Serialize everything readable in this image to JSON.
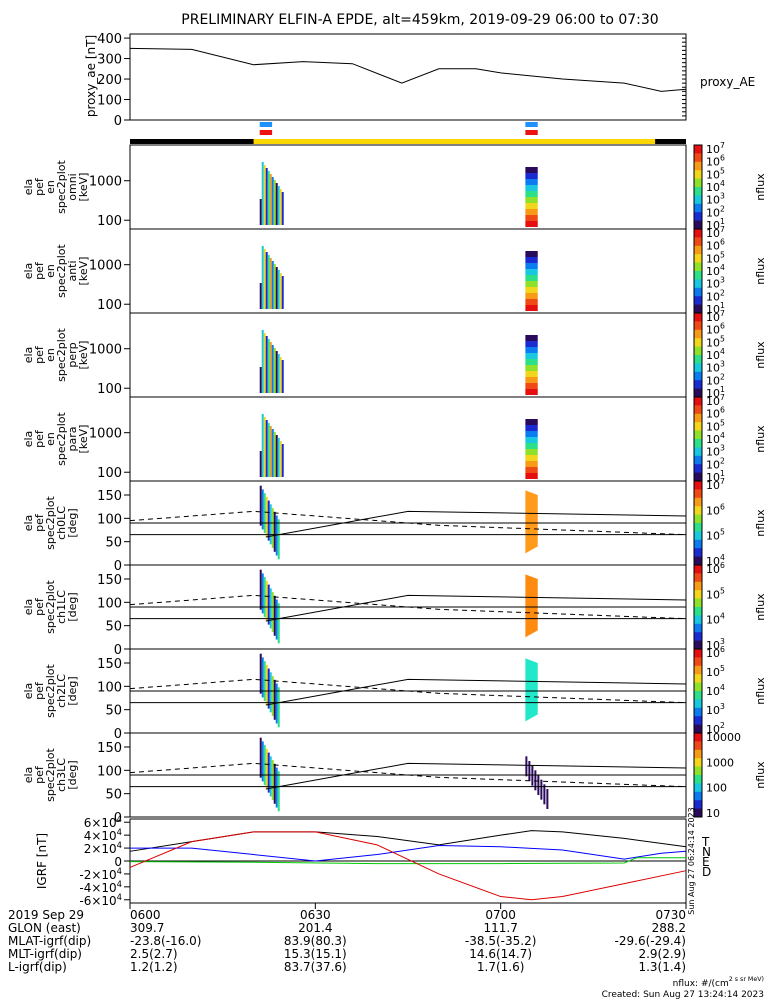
{
  "title": "PRELIMINARY ELFIN-A EPDE, alt=459km, 2019-09-29 06:00 to 07:30",
  "chart_data": [
    {
      "type": "line",
      "panel": "proxy_ae",
      "ylabel": "proxy_ae [nT]",
      "legend": "proxy_AE",
      "ylim": [
        0,
        420
      ],
      "yticks": [
        0,
        100,
        200,
        300,
        400
      ],
      "x_minutes": [
        0,
        10,
        20,
        28,
        36,
        44,
        50,
        56,
        60,
        70,
        80,
        86,
        90
      ],
      "values": [
        350,
        345,
        270,
        285,
        275,
        180,
        250,
        250,
        230,
        200,
        180,
        140,
        150
      ]
    },
    {
      "type": "heatmap",
      "panels": [
        {
          "label": [
            "ela",
            "pef",
            "en",
            "spec2plot",
            "omni",
            "[keV]"
          ],
          "kind": "energy",
          "yticks": [
            100,
            1000
          ],
          "zticks": [
            "10^1",
            "10^2",
            "10^3",
            "10^4",
            "10^5",
            "10^6",
            "10^7"
          ],
          "zunit": "nflux"
        },
        {
          "label": [
            "ela",
            "pef",
            "en",
            "spec2plot",
            "anti",
            "[keV]"
          ],
          "kind": "energy",
          "yticks": [
            100,
            1000
          ],
          "zticks": [
            "10^1",
            "10^2",
            "10^3",
            "10^4",
            "10^5",
            "10^6",
            "10^7"
          ],
          "zunit": "nflux"
        },
        {
          "label": [
            "ela",
            "pef",
            "en",
            "spec2plot",
            "perp",
            "[keV]"
          ],
          "kind": "energy",
          "yticks": [
            100,
            1000
          ],
          "zticks": [
            "10^1",
            "10^2",
            "10^3",
            "10^4",
            "10^5",
            "10^6",
            "10^7"
          ],
          "zunit": "nflux"
        },
        {
          "label": [
            "ela",
            "pef",
            "en",
            "spec2plot",
            "para",
            "[keV]"
          ],
          "kind": "energy",
          "yticks": [
            100,
            1000
          ],
          "zticks": [
            "10^1",
            "10^2",
            "10^3",
            "10^4",
            "10^5",
            "10^6",
            "10^7"
          ],
          "zunit": "nflux"
        },
        {
          "label": [
            "ela",
            "pef",
            "spec2plot",
            "ch0LC",
            "[deg]"
          ],
          "kind": "pitch",
          "yticks": [
            0,
            50,
            100,
            150
          ],
          "zticks": [
            "10^4",
            "10^5",
            "10^6",
            "10^7"
          ],
          "zunit": "nflux"
        },
        {
          "label": [
            "ela",
            "pef",
            "spec2plot",
            "ch1LC",
            "[deg]"
          ],
          "kind": "pitch",
          "yticks": [
            0,
            50,
            100,
            150
          ],
          "zticks": [
            "10^3",
            "10^4",
            "10^5",
            "10^6"
          ],
          "zunit": "nflux"
        },
        {
          "label": [
            "ela",
            "pef",
            "spec2plot",
            "ch2LC",
            "[deg]"
          ],
          "kind": "pitch",
          "yticks": [
            0,
            50,
            100,
            150
          ],
          "zticks": [
            "10^2",
            "10^3",
            "10^4",
            "10^5",
            "10^6"
          ],
          "zunit": "nflux"
        },
        {
          "label": [
            "ela",
            "pef",
            "spec2plot",
            "ch3LC",
            "[deg]"
          ],
          "kind": "pitch",
          "yticks": [
            0,
            50,
            100,
            150
          ],
          "zticks": [
            "10",
            "100",
            "1000",
            "10000"
          ],
          "zunit": "nflux"
        }
      ],
      "science_zones_minutes": [
        [
          21,
          23
        ],
        [
          64,
          66
        ]
      ],
      "pitch_ref_lines_deg": [
        90,
        65
      ]
    },
    {
      "type": "line",
      "panel": "IGRF",
      "ylabel": "IGRF [nT]",
      "ylim": [
        -65000,
        65000
      ],
      "yticks": [
        "-6×10^4",
        "-4×10^4",
        "-2×10^4",
        "0",
        "2×10^4",
        "4×10^4",
        "6×10^4"
      ],
      "series": [
        {
          "name": "T",
          "color": "#000000",
          "x_minutes": [
            0,
            10,
            20,
            30,
            40,
            50,
            60,
            65,
            70,
            80,
            90
          ],
          "values": [
            15000,
            30000,
            45000,
            45000,
            38000,
            25000,
            40000,
            47000,
            45000,
            35000,
            22000
          ]
        },
        {
          "name": "N",
          "color": "#0000ff",
          "x_minutes": [
            0,
            10,
            20,
            30,
            40,
            50,
            60,
            70,
            80,
            86,
            90
          ],
          "values": [
            20000,
            20000,
            10000,
            0,
            10000,
            24000,
            22000,
            17000,
            3000,
            12000,
            15000
          ]
        },
        {
          "name": "E",
          "color": "#00cc00",
          "x_minutes": [
            0,
            20,
            40,
            60,
            80,
            82,
            90
          ],
          "values": [
            -1000,
            -2000,
            -4000,
            -4000,
            -3000,
            5000,
            5000
          ]
        },
        {
          "name": "D",
          "color": "#dd0000",
          "x_minutes": [
            0,
            10,
            20,
            30,
            40,
            50,
            60,
            65,
            70,
            80,
            90
          ],
          "values": [
            -10000,
            30000,
            45000,
            45000,
            25000,
            -20000,
            -55000,
            -60000,
            -55000,
            -35000,
            -15000
          ]
        }
      ]
    }
  ],
  "x_axis": {
    "rows": [
      {
        "label": "2019 Sep 29",
        "values": [
          "0600",
          "0630",
          "0700",
          "0730"
        ]
      },
      {
        "label": "GLON (east)",
        "values": [
          "309.7",
          "201.4",
          "111.7",
          "288.2"
        ]
      },
      {
        "label": "MLAT-igrf(dip)",
        "values": [
          "-23.8(-16.0)",
          "83.9(80.3)",
          "-38.5(-35.2)",
          "-29.6(-29.4)"
        ]
      },
      {
        "label": "MLT-igrf(dip)",
        "values": [
          "2.5(2.7)",
          "15.3(15.1)",
          "14.6(14.7)",
          "2.9(2.9)"
        ]
      },
      {
        "label": "L-igrf(dip)",
        "values": [
          "1.2(1.2)",
          "83.7(37.6)",
          "1.7(1.6)",
          "1.3(1.4)"
        ]
      }
    ]
  },
  "footer": {
    "units": "nflux: #/(cm^2 s sr MeV)",
    "created": "Created: Sun Aug 27 13:24:14 2023",
    "vertical_stamp": "Sun Aug 27 06:24:14 2023"
  },
  "colors": {
    "zone_blue": "#1e90ff",
    "zone_red": "#ee1111",
    "bar_yellow": "#ffd700",
    "bar_black": "#000000"
  }
}
